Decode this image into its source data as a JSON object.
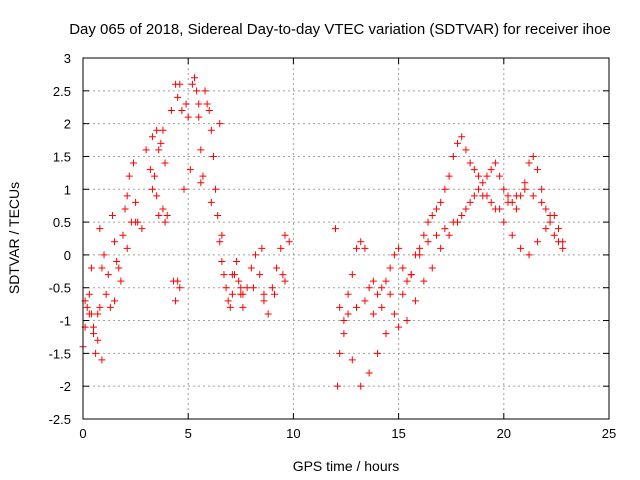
{
  "chart_data": {
    "type": "scatter",
    "title": "Day 065 of 2018, Sidereal Day-to-day VTEC variation (SDTVAR) for receiver ihoe",
    "xlabel": "GPS time / hours",
    "ylabel": "SDTVAR / TECUs",
    "xlim": [
      0,
      25
    ],
    "ylim": [
      -2.5,
      3
    ],
    "xticks": [
      0,
      5,
      10,
      15,
      20,
      25
    ],
    "xtick_labels": [
      "0",
      "5",
      "10",
      "15",
      "20",
      "25"
    ],
    "yticks": [
      -2.5,
      -2,
      -1.5,
      -1,
      -0.5,
      0,
      0.5,
      1,
      1.5,
      2,
      2.5,
      3
    ],
    "ytick_labels": [
      "-2.5",
      "-2",
      "-1.5",
      "-1",
      "-0.5",
      "0",
      "0.5",
      "1",
      "1.5",
      "2",
      "2.5",
      "3"
    ],
    "grid": true,
    "marker": "+",
    "color": "#ff0000",
    "series": [
      {
        "name": "SDTVAR",
        "x": [
          0.0,
          0.1,
          0.2,
          0.3,
          0.4,
          0.5,
          0.6,
          0.7,
          0.8,
          0.9,
          1.0,
          1.1,
          1.2,
          1.4,
          1.5,
          1.6,
          1.8,
          1.9,
          2.0,
          2.1,
          2.2,
          2.4,
          2.5,
          2.6,
          2.8,
          3.0,
          3.2,
          3.3,
          3.4,
          3.5,
          3.6,
          3.7,
          3.8,
          3.9,
          4.0,
          4.2,
          4.4,
          4.5,
          4.6,
          4.7,
          4.8,
          4.9,
          5.0,
          5.2,
          5.3,
          5.4,
          5.5,
          5.6,
          5.7,
          5.8,
          5.9,
          6.0,
          6.1,
          6.2,
          6.3,
          6.4,
          6.5,
          6.6,
          6.7,
          6.8,
          6.9,
          7.0,
          7.1,
          7.2,
          7.3,
          7.4,
          7.5,
          7.6,
          7.8,
          8.0,
          8.2,
          8.4,
          8.6,
          8.8,
          9.0,
          9.2,
          9.4,
          9.6,
          9.8,
          12.0,
          12.1,
          12.2,
          12.4,
          12.6,
          12.8,
          13.0,
          13.2,
          13.4,
          13.6,
          13.8,
          14.0,
          14.2,
          14.4,
          14.6,
          14.8,
          15.0,
          15.2,
          15.4,
          15.6,
          15.8,
          16.0,
          16.2,
          16.4,
          16.6,
          16.8,
          17.0,
          17.2,
          17.4,
          17.6,
          17.8,
          18.0,
          18.2,
          18.4,
          18.6,
          18.8,
          19.0,
          19.2,
          19.4,
          19.6,
          19.8,
          20.0,
          20.2,
          20.4,
          20.6,
          20.8,
          21.0,
          21.2,
          21.4,
          21.6,
          21.8,
          22.0,
          22.2,
          22.4,
          22.6,
          22.8,
          0.1,
          0.3,
          0.5,
          0.7,
          0.9,
          1.3,
          1.7,
          2.1,
          2.5,
          3.3,
          3.6,
          3.9,
          4.3,
          4.6,
          5.1,
          5.6,
          6.1,
          6.6,
          7.1,
          7.6,
          8.1,
          8.6,
          9.1,
          9.6,
          12.2,
          12.6,
          13.0,
          13.4,
          13.8,
          14.2,
          14.6,
          15.0,
          15.4,
          15.8,
          16.2,
          16.6,
          17.0,
          17.4,
          17.8,
          18.2,
          18.6,
          19.0,
          19.4,
          19.8,
          20.2,
          20.6,
          21.0,
          21.4,
          21.8,
          22.2,
          22.6,
          12.4,
          12.8,
          13.2,
          13.6,
          14.0,
          14.4,
          14.8,
          15.2,
          15.6,
          16.0,
          16.4,
          16.8,
          17.2,
          17.6,
          18.0,
          18.4,
          18.8,
          19.2,
          19.6,
          20.0,
          20.4,
          20.8,
          21.2,
          21.6,
          22.0,
          22.4,
          22.8,
          0.4,
          0.8,
          1.5,
          2.3,
          3.5,
          3.8,
          4.4,
          4.5,
          5.5,
          6.5,
          7.5,
          8.5,
          9.5
        ],
        "y": [
          -1.4,
          -1.1,
          -0.8,
          -0.6,
          -0.9,
          -1.2,
          -1.5,
          -1.3,
          -0.8,
          -0.2,
          0.0,
          -0.6,
          -0.3,
          0.6,
          0.2,
          -0.1,
          -0.4,
          0.3,
          0.7,
          0.9,
          1.2,
          1.4,
          0.8,
          0.5,
          0.4,
          1.6,
          1.3,
          1.8,
          1.2,
          0.9,
          1.6,
          1.7,
          1.9,
          1.4,
          0.6,
          2.2,
          2.6,
          2.4,
          2.6,
          2.2,
          1.0,
          2.3,
          2.1,
          2.6,
          2.7,
          2.5,
          2.1,
          1.6,
          1.2,
          2.5,
          2.3,
          2.2,
          1.9,
          1.5,
          1.0,
          0.6,
          0.2,
          -0.1,
          -0.3,
          -0.5,
          -0.7,
          -0.8,
          -0.6,
          -0.3,
          -0.1,
          -0.4,
          -0.6,
          -0.8,
          -0.5,
          -0.2,
          0.0,
          -0.3,
          -0.6,
          -0.9,
          -0.5,
          -0.2,
          0.1,
          0.3,
          0.2,
          0.4,
          -2.0,
          -1.5,
          -1.0,
          -0.6,
          -0.3,
          0.1,
          0.2,
          0.1,
          -0.5,
          -0.4,
          -0.6,
          -0.5,
          -0.4,
          -0.2,
          0.0,
          0.1,
          -0.2,
          -0.4,
          -0.3,
          0.0,
          0.1,
          0.3,
          0.5,
          0.6,
          0.7,
          0.8,
          1.0,
          1.2,
          1.5,
          1.7,
          1.8,
          1.6,
          1.4,
          1.3,
          1.2,
          1.1,
          1.2,
          1.3,
          1.4,
          1.2,
          1.0,
          0.9,
          0.8,
          0.7,
          0.9,
          1.1,
          1.4,
          1.5,
          1.3,
          1.0,
          0.7,
          0.5,
          0.3,
          0.2,
          0.1,
          -0.7,
          -0.9,
          -1.1,
          -0.9,
          -1.6,
          -0.8,
          -0.2,
          0.1,
          0.5,
          1.0,
          0.6,
          0.5,
          -0.4,
          -0.5,
          1.3,
          1.1,
          0.8,
          0.3,
          -0.3,
          -0.6,
          -0.5,
          -0.7,
          -0.6,
          -0.4,
          -0.8,
          -0.9,
          -0.8,
          -0.7,
          -0.9,
          -0.8,
          -0.6,
          -1.1,
          -1.0,
          -0.7,
          -0.4,
          -0.2,
          0.1,
          0.3,
          0.5,
          0.7,
          0.9,
          0.9,
          0.8,
          0.7,
          0.8,
          0.9,
          1.0,
          0.9,
          0.8,
          0.6,
          0.4,
          -1.2,
          -1.6,
          -2.0,
          -1.8,
          -1.5,
          -1.2,
          -0.9,
          -0.6,
          -0.3,
          0.0,
          0.2,
          0.3,
          0.4,
          0.5,
          0.6,
          0.8,
          1.0,
          0.9,
          0.7,
          0.5,
          0.3,
          0.1,
          0.0,
          0.2,
          0.4,
          0.6,
          0.2,
          -0.2,
          0.4,
          -0.7,
          0.5,
          1.9,
          0.7,
          -0.7,
          -0.4,
          2.3,
          2.0,
          -0.5,
          0.1,
          -0.3
        ]
      }
    ]
  }
}
